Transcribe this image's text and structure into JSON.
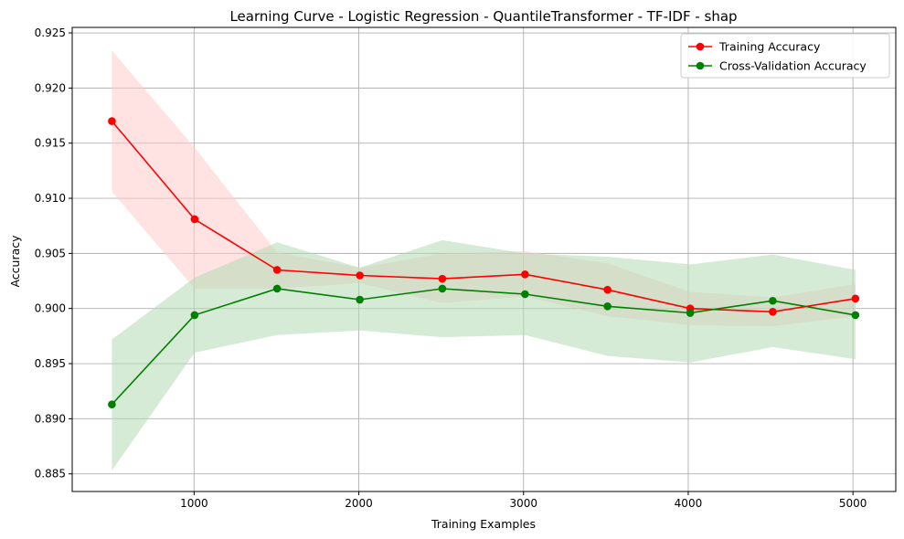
{
  "chart_data": {
    "type": "line",
    "title": "Learning Curve - Logistic Regression - QuantileTransformer - TF-IDF - shap",
    "xlabel": "Training Examples",
    "ylabel": "Accuracy",
    "xlim": [
      260,
      5260
    ],
    "ylim": [
      0.8834,
      0.9255
    ],
    "xticks": [
      1000,
      2000,
      3000,
      4000,
      5000
    ],
    "yticks": [
      0.885,
      0.89,
      0.895,
      0.9,
      0.905,
      0.91,
      0.915,
      0.92,
      0.925
    ],
    "ytick_labels": [
      "0.885",
      "0.890",
      "0.895",
      "0.900",
      "0.905",
      "0.910",
      "0.915",
      "0.920",
      "0.925"
    ],
    "grid": true,
    "legend_position": "top-right",
    "x": [
      501,
      1003,
      1504,
      2006,
      2507,
      3009,
      3510,
      4012,
      4513,
      5015
    ],
    "series": [
      {
        "name": "Training Accuracy",
        "color": "#ff0000",
        "band_color": "#ffcccc",
        "values": [
          0.917,
          0.9081,
          0.9035,
          0.903,
          0.9027,
          0.9031,
          0.9017,
          0.9,
          0.8997,
          0.9009
        ],
        "band_lower": [
          0.9106,
          0.9018,
          0.9018,
          0.9023,
          0.9005,
          0.9011,
          0.8993,
          0.8985,
          0.8984,
          0.8993
        ],
        "band_upper": [
          0.9234,
          0.9146,
          0.9051,
          0.9037,
          0.905,
          0.9052,
          0.9041,
          0.9015,
          0.901,
          0.9022
        ]
      },
      {
        "name": "Cross-Validation Accuracy",
        "color": "#008000",
        "band_color": "#b3dab3",
        "values": [
          0.8913,
          0.8994,
          0.9018,
          0.9008,
          0.9018,
          0.9013,
          0.9002,
          0.8996,
          0.9007,
          0.8994
        ],
        "band_lower": [
          0.8853,
          0.896,
          0.8976,
          0.898,
          0.8974,
          0.8976,
          0.8957,
          0.8951,
          0.8965,
          0.8954
        ],
        "band_upper": [
          0.8972,
          0.9028,
          0.906,
          0.9037,
          0.9062,
          0.905,
          0.9047,
          0.904,
          0.9049,
          0.9035
        ]
      }
    ]
  }
}
